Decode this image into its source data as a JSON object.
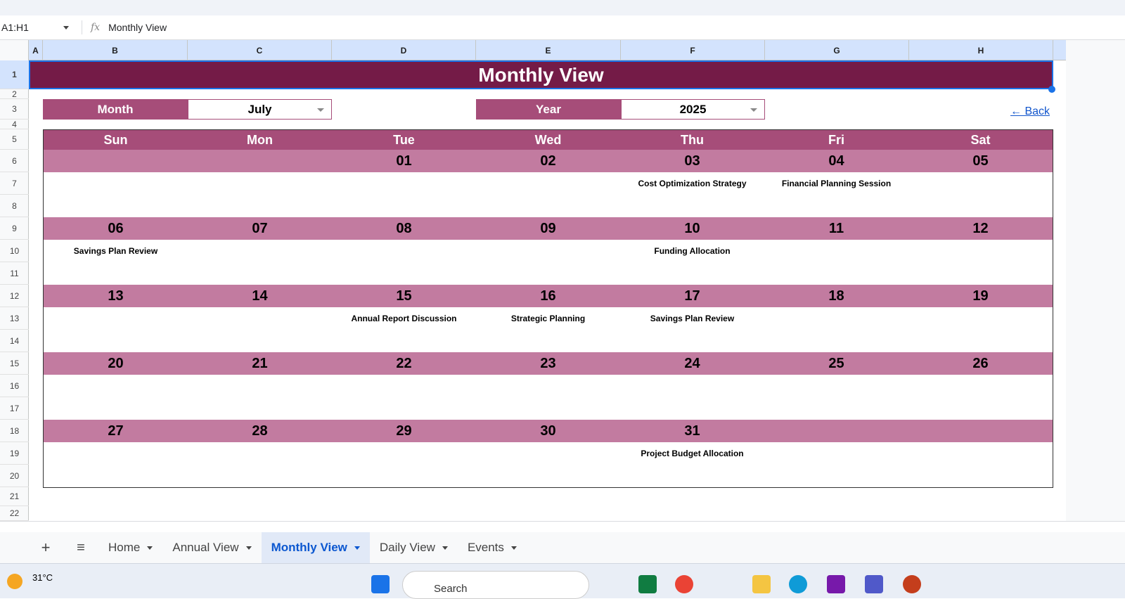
{
  "formula_bar": {
    "name_box": "A1:H1",
    "fx_icon": "fx",
    "content": "Monthly View"
  },
  "columns": [
    "A",
    "B",
    "C",
    "D",
    "E",
    "F",
    "G",
    "H"
  ],
  "rows": [
    "1",
    "2",
    "3",
    "4",
    "5",
    "6",
    "7",
    "8",
    "9",
    "10",
    "11",
    "12",
    "13",
    "14",
    "15",
    "16",
    "17",
    "18",
    "19",
    "20",
    "21",
    "22"
  ],
  "title": "Monthly View",
  "controls": {
    "month_label": "Month",
    "month_value": "July",
    "year_label": "Year",
    "year_value": "2025",
    "back_link": "← Back"
  },
  "colors": {
    "title": "#741b47",
    "header": "#a64d79",
    "date_row": "#c27ba0"
  },
  "calendar": {
    "days": [
      "Sun",
      "Mon",
      "Tue",
      "Wed",
      "Thu",
      "Fri",
      "Sat"
    ],
    "weeks": [
      {
        "dates": [
          "",
          "",
          "01",
          "02",
          "03",
          "04",
          "05"
        ],
        "events": [
          "",
          "",
          "",
          "",
          "Cost Optimization Strategy",
          "Financial Planning Session",
          ""
        ]
      },
      {
        "dates": [
          "06",
          "07",
          "08",
          "09",
          "10",
          "11",
          "12"
        ],
        "events": [
          "Savings Plan Review",
          "",
          "",
          "",
          "Funding Allocation",
          "",
          ""
        ]
      },
      {
        "dates": [
          "13",
          "14",
          "15",
          "16",
          "17",
          "18",
          "19"
        ],
        "events": [
          "",
          "",
          "Annual Report Discussion",
          "Strategic Planning",
          "Savings Plan Review",
          "",
          ""
        ]
      },
      {
        "dates": [
          "20",
          "21",
          "22",
          "23",
          "24",
          "25",
          "26"
        ],
        "events": [
          "",
          "",
          "",
          "",
          "",
          "",
          ""
        ]
      },
      {
        "dates": [
          "27",
          "28",
          "29",
          "30",
          "31",
          "",
          ""
        ],
        "events": [
          "",
          "",
          "",
          "",
          "Project Budget Allocation",
          "",
          ""
        ]
      }
    ]
  },
  "sheet_tabs": [
    {
      "label": "Home"
    },
    {
      "label": "Annual View"
    },
    {
      "label": "Monthly View",
      "active": true
    },
    {
      "label": "Daily View"
    },
    {
      "label": "Events"
    }
  ],
  "taskbar": {
    "weather": "31°C",
    "search_placeholder": "Search"
  }
}
